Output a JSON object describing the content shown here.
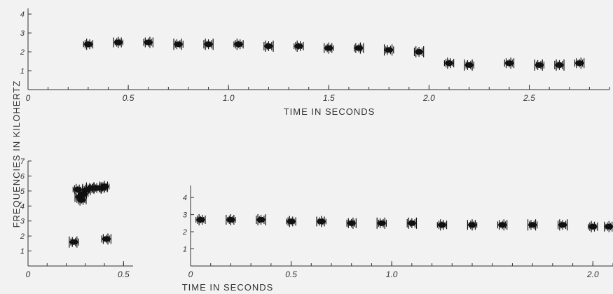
{
  "chart_data": [
    {
      "type": "scatter",
      "panel": "top",
      "xlabel": "TIME IN SECONDS",
      "xlim": [
        0,
        2.9
      ],
      "ylim": [
        0,
        4.3
      ],
      "x_ticks": [
        0,
        0.5,
        1.0,
        1.5,
        2.0,
        2.5
      ],
      "x_tick_labels": [
        "0",
        "0.5",
        "1.0",
        "1.5",
        "2.0",
        "2.5"
      ],
      "y_ticks": [
        1,
        2,
        3,
        4
      ],
      "y_tick_labels": [
        "1",
        "2",
        "3",
        "4"
      ],
      "series": [
        {
          "points": [
            [
              0.3,
              2.4
            ],
            [
              0.45,
              2.5
            ],
            [
              0.6,
              2.5
            ],
            [
              0.75,
              2.4
            ],
            [
              0.9,
              2.4
            ],
            [
              1.05,
              2.4
            ],
            [
              1.2,
              2.3
            ],
            [
              1.35,
              2.3
            ],
            [
              1.5,
              2.2
            ],
            [
              1.65,
              2.2
            ],
            [
              1.8,
              2.1
            ],
            [
              1.95,
              2.0
            ],
            [
              2.1,
              1.4
            ],
            [
              2.2,
              1.3
            ],
            [
              2.4,
              1.4
            ],
            [
              2.55,
              1.3
            ],
            [
              2.65,
              1.3
            ],
            [
              2.75,
              1.4
            ]
          ]
        }
      ]
    },
    {
      "type": "scatter",
      "panel": "bottom-left",
      "xlim": [
        0,
        0.55
      ],
      "ylim": [
        0,
        7
      ],
      "x_ticks": [
        0,
        0.5
      ],
      "x_tick_labels": [
        "0",
        "0.5"
      ],
      "y_ticks": [
        1,
        2,
        3,
        4,
        5,
        6,
        7
      ],
      "y_tick_labels": [
        "1",
        "2",
        "3",
        "4",
        "5",
        "6",
        "7"
      ],
      "series": [
        {
          "points": [
            [
              0.26,
              5.1
            ],
            [
              0.27,
              4.6
            ],
            [
              0.28,
              4.4
            ],
            [
              0.29,
              4.8
            ],
            [
              0.31,
              5.1
            ],
            [
              0.33,
              5.2
            ],
            [
              0.36,
              5.2
            ],
            [
              0.39,
              5.2
            ],
            [
              0.4,
              5.3
            ],
            [
              0.24,
              1.6
            ],
            [
              0.41,
              1.8
            ]
          ]
        }
      ]
    },
    {
      "type": "scatter",
      "panel": "bottom-right",
      "xlabel": "TIME IN SECONDS",
      "xlim": [
        0,
        2.1
      ],
      "ylim": [
        0,
        4.7
      ],
      "x_ticks": [
        0,
        0.5,
        1.0,
        2.0
      ],
      "x_tick_labels": [
        "0",
        "0.5",
        "1.0",
        "2.0"
      ],
      "y_ticks": [
        1,
        2,
        3,
        4
      ],
      "y_tick_labels": [
        "1",
        "2",
        "3",
        "4"
      ],
      "series": [
        {
          "points": [
            [
              0.05,
              2.7
            ],
            [
              0.2,
              2.7
            ],
            [
              0.35,
              2.7
            ],
            [
              0.5,
              2.6
            ],
            [
              0.65,
              2.6
            ],
            [
              0.8,
              2.5
            ],
            [
              0.95,
              2.5
            ],
            [
              1.1,
              2.5
            ],
            [
              1.25,
              2.4
            ],
            [
              1.4,
              2.4
            ],
            [
              1.55,
              2.4
            ],
            [
              1.7,
              2.4
            ],
            [
              1.85,
              2.4
            ],
            [
              2.0,
              2.3
            ],
            [
              2.08,
              2.3
            ]
          ]
        }
      ]
    }
  ],
  "shared_ylabel": "FREQUENCIES IN KILOHERTZ"
}
